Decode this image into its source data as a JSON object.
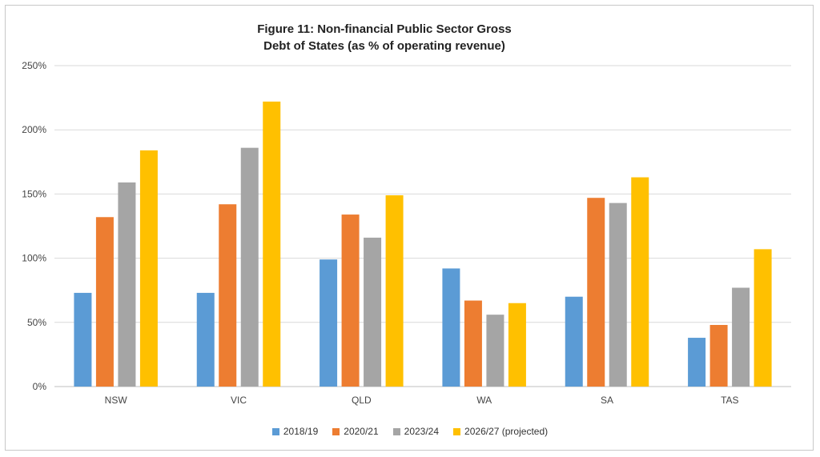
{
  "chart_data": {
    "type": "bar",
    "title": "Figure 11: Non-financial Public Sector Gross",
    "subtitle": "Debt of States (as % of operating revenue)",
    "xlabel": "",
    "ylabel": "",
    "categories": [
      "NSW",
      "VIC",
      "QLD",
      "WA",
      "SA",
      "TAS"
    ],
    "series": [
      {
        "name": "2018/19",
        "color": "#5b9bd5",
        "values": [
          73,
          73,
          99,
          92,
          70,
          38
        ]
      },
      {
        "name": "2020/21",
        "color": "#ed7d31",
        "values": [
          132,
          142,
          134,
          67,
          147,
          48
        ]
      },
      {
        "name": "2023/24",
        "color": "#a5a5a5",
        "values": [
          159,
          186,
          116,
          56,
          143,
          77
        ]
      },
      {
        "name": "2026/27 (projected)",
        "color": "#ffc000",
        "values": [
          184,
          222,
          149,
          65,
          163,
          107
        ]
      }
    ],
    "ylim": [
      0,
      250
    ],
    "yticks": [
      "0%",
      "50%",
      "100%",
      "150%",
      "200%",
      "250%"
    ],
    "grid": true,
    "legend_position": "bottom"
  }
}
